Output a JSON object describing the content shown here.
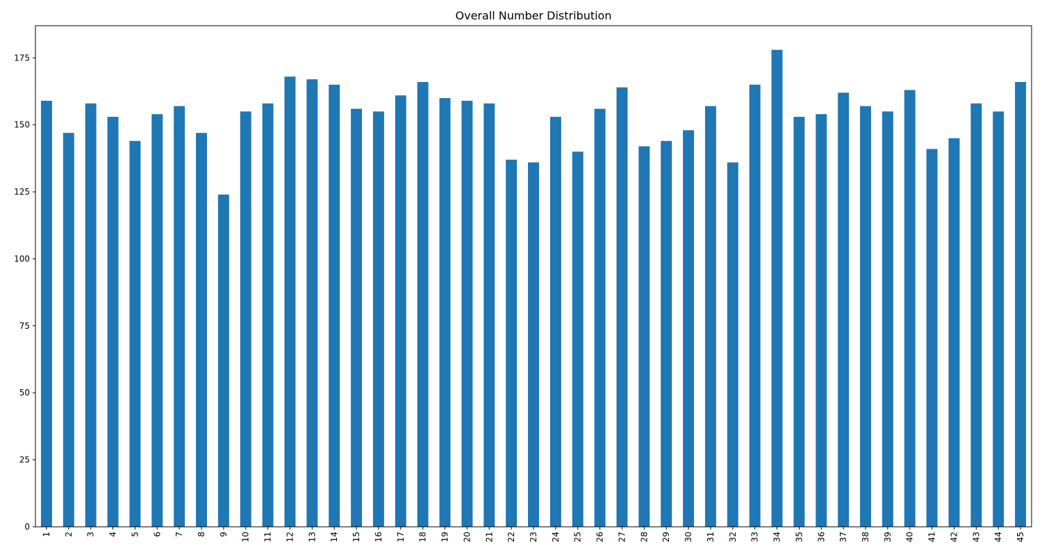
{
  "chart_data": {
    "type": "bar",
    "title": "Overall Number Distribution",
    "xlabel": "",
    "ylabel": "",
    "categories": [
      "1",
      "2",
      "3",
      "4",
      "5",
      "6",
      "7",
      "8",
      "9",
      "10",
      "11",
      "12",
      "13",
      "14",
      "15",
      "16",
      "17",
      "18",
      "19",
      "20",
      "21",
      "22",
      "23",
      "24",
      "25",
      "26",
      "27",
      "28",
      "29",
      "30",
      "31",
      "32",
      "33",
      "34",
      "35",
      "36",
      "37",
      "38",
      "39",
      "40",
      "41",
      "42",
      "43",
      "44",
      "45"
    ],
    "values": [
      159,
      147,
      158,
      153,
      144,
      154,
      157,
      147,
      124,
      155,
      158,
      168,
      167,
      165,
      156,
      155,
      161,
      166,
      160,
      159,
      158,
      137,
      136,
      153,
      140,
      156,
      164,
      142,
      144,
      148,
      157,
      136,
      165,
      178,
      153,
      154,
      162,
      157,
      155,
      163,
      141,
      145,
      158,
      155,
      166
    ],
    "ylim": [
      0,
      187
    ],
    "y_ticks": [
      0,
      25,
      50,
      75,
      100,
      125,
      150,
      175
    ],
    "x_tick_rotation": "vertical",
    "grid": false,
    "legend": "none",
    "bar_color": "#1f77b4"
  }
}
